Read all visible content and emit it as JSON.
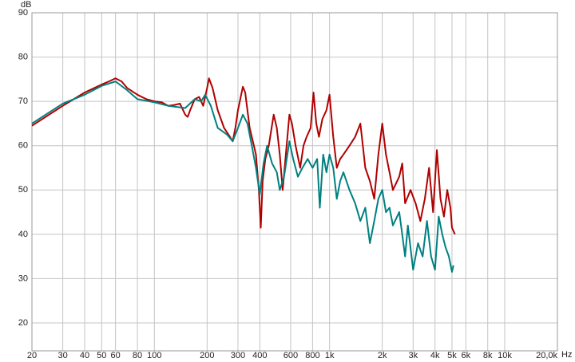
{
  "chart_data": {
    "type": "line",
    "y_label": "dB",
    "x_label": "Hz",
    "log_x": true,
    "grid": true,
    "xlim": [
      20,
      20000
    ],
    "ylim": [
      13.7,
      90
    ],
    "xticks": [
      20,
      30,
      40,
      50,
      60,
      80,
      100,
      200,
      300,
      400,
      600,
      800,
      {
        "value": 1000,
        "label": "1k"
      },
      {
        "value": 2000,
        "label": "2k"
      },
      {
        "value": 3000,
        "label": "3k"
      },
      {
        "value": 4000,
        "label": "4k"
      },
      {
        "value": 5000,
        "label": "5k"
      },
      {
        "value": 6000,
        "label": "6k"
      },
      {
        "value": 8000,
        "label": "8k"
      },
      {
        "value": 10000,
        "label": "10k"
      },
      {
        "value": 20000,
        "label": "20,0k"
      }
    ],
    "yticks": [
      20,
      30,
      40,
      50,
      60,
      70,
      80,
      90
    ],
    "series": [
      {
        "color": "#b00000",
        "x": [
          20,
          30,
          40,
          50,
          55,
          60,
          65,
          70,
          80,
          90,
          100,
          110,
          120,
          130,
          140,
          150,
          155,
          160,
          170,
          180,
          190,
          200,
          205,
          215,
          230,
          250,
          270,
          280,
          290,
          300,
          320,
          330,
          350,
          370,
          380,
          395,
          405,
          415,
          430,
          450,
          480,
          500,
          520,
          540,
          560,
          590,
          610,
          640,
          680,
          710,
          740,
          780,
          810,
          840,
          870,
          910,
          960,
          1000,
          1050,
          1100,
          1150,
          1200,
          1300,
          1400,
          1500,
          1600,
          1700,
          1800,
          1900,
          2000,
          2100,
          2200,
          2300,
          2500,
          2600,
          2700,
          2900,
          3100,
          3300,
          3500,
          3700,
          3900,
          4100,
          4300,
          4500,
          4700,
          4900,
          5000,
          5200
        ],
        "values": [
          64.5,
          69,
          72,
          73.8,
          74.5,
          75.2,
          74.5,
          73,
          71.5,
          70.5,
          70,
          69.8,
          69,
          69.2,
          69.5,
          67,
          66.5,
          68,
          70.5,
          71,
          69,
          73,
          75.2,
          73,
          68,
          64,
          62,
          61,
          64,
          68,
          73.3,
          72,
          64,
          60,
          58,
          50,
          41.5,
          52,
          57,
          60,
          67,
          64,
          58,
          50,
          57,
          67,
          65,
          60,
          55,
          60,
          62,
          64,
          72,
          65,
          62,
          66,
          68,
          71.5,
          62,
          55,
          57,
          58,
          60,
          62,
          65,
          55,
          52,
          48,
          58,
          65,
          58,
          54,
          50,
          53,
          56,
          47,
          50,
          47,
          43,
          48,
          55,
          45,
          59,
          48,
          44,
          50,
          46,
          41.5,
          40
        ]
      },
      {
        "color": "#008080",
        "x": [
          20,
          30,
          40,
          50,
          60,
          70,
          80,
          100,
          120,
          150,
          170,
          185,
          195,
          210,
          230,
          260,
          280,
          300,
          320,
          340,
          360,
          380,
          400,
          420,
          440,
          470,
          500,
          520,
          550,
          590,
          620,
          660,
          700,
          750,
          800,
          850,
          880,
          920,
          960,
          1000,
          1050,
          1100,
          1150,
          1200,
          1300,
          1400,
          1500,
          1600,
          1700,
          1800,
          1900,
          2000,
          2100,
          2200,
          2300,
          2500,
          2600,
          2700,
          2800,
          3000,
          3200,
          3400,
          3600,
          3800,
          4000,
          4200,
          4400,
          4600,
          4800,
          5000,
          5100
        ],
        "values": [
          65,
          69.5,
          71.5,
          73.5,
          74.5,
          72.5,
          70.5,
          69.8,
          69,
          68.5,
          70.5,
          70,
          71.5,
          69,
          64,
          62.5,
          61,
          64,
          67,
          65,
          60,
          55,
          49,
          56,
          60,
          56,
          54,
          50,
          53,
          61,
          57,
          53,
          55,
          57,
          55,
          57,
          46,
          58,
          54,
          58,
          55,
          48,
          52,
          54,
          50,
          47,
          43,
          46,
          38,
          43,
          48,
          50,
          45,
          46,
          42,
          45,
          40,
          35,
          42,
          32,
          38,
          35,
          43,
          35,
          32,
          44,
          40,
          37,
          35,
          31.5,
          33
        ]
      }
    ]
  }
}
